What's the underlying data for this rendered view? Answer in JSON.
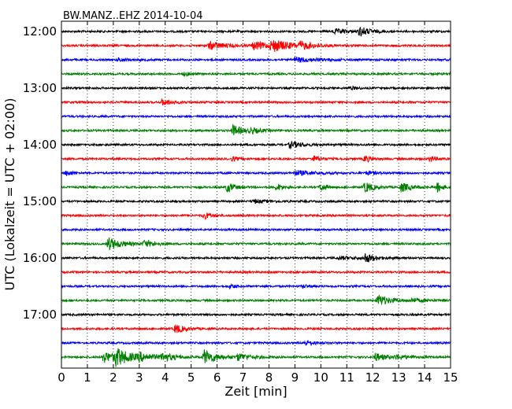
{
  "chart_data": {
    "type": "line",
    "title": "BW.MANZ..EHZ 2014-10-04",
    "xlabel": "Zeit  [min]",
    "ylabel": "UTC (Lokalzeit = UTC + 02:00)",
    "xlim": [
      0,
      15
    ],
    "xticks": [
      "0",
      "1",
      "2",
      "3",
      "4",
      "5",
      "6",
      "7",
      "8",
      "9",
      "10",
      "11",
      "12",
      "13",
      "14",
      "15"
    ],
    "yticks": [
      "12:00",
      "13:00",
      "14:00",
      "15:00",
      "16:00",
      "17:00"
    ],
    "trace_interval_min": 15,
    "grid": "vertical dotted at every minute",
    "colors": [
      "#000000",
      "#ff0000",
      "#0000ff",
      "#008000"
    ],
    "series": [
      {
        "start": "12:00",
        "events": [
          {
            "t": 10.5,
            "a": 3,
            "w": 0.5
          },
          {
            "t": 11.5,
            "a": 6,
            "w": 0.35
          }
        ]
      },
      {
        "start": "12:15",
        "events": [
          {
            "t": 5.7,
            "a": 5,
            "w": 0.6
          },
          {
            "t": 7.4,
            "a": 5,
            "w": 0.6
          },
          {
            "t": 8.1,
            "a": 7,
            "w": 0.7
          },
          {
            "t": 9.2,
            "a": 4,
            "w": 0.5
          }
        ]
      },
      {
        "start": "12:30",
        "events": [
          {
            "t": 2.2,
            "a": 2,
            "w": 0.5
          },
          {
            "t": 9.0,
            "a": 3,
            "w": 0.9
          }
        ]
      },
      {
        "start": "12:45",
        "events": [
          {
            "t": 4.7,
            "a": 2,
            "w": 0.3
          },
          {
            "t": 15.0,
            "a": 3,
            "w": 0.2
          }
        ]
      },
      {
        "start": "13:00",
        "events": [
          {
            "t": 11.1,
            "a": 2,
            "w": 0.3
          }
        ]
      },
      {
        "start": "13:15",
        "events": [
          {
            "t": 3.9,
            "a": 4,
            "w": 0.35
          }
        ]
      },
      {
        "start": "13:30",
        "events": []
      },
      {
        "start": "13:45",
        "events": [
          {
            "t": 6.6,
            "a": 7,
            "w": 0.35
          },
          {
            "t": 7.3,
            "a": 3,
            "w": 0.4
          }
        ]
      },
      {
        "start": "14:00",
        "events": [
          {
            "t": 8.8,
            "a": 4,
            "w": 0.5
          }
        ]
      },
      {
        "start": "14:15",
        "events": [
          {
            "t": 6.6,
            "a": 3,
            "w": 0.2
          },
          {
            "t": 9.7,
            "a": 4,
            "w": 0.3
          },
          {
            "t": 11.7,
            "a": 5,
            "w": 0.2
          },
          {
            "t": 14.2,
            "a": 4,
            "w": 0.2
          }
        ]
      },
      {
        "start": "14:30",
        "events": [
          {
            "t": 0.2,
            "a": 4,
            "w": 0.2
          },
          {
            "t": 9.0,
            "a": 3,
            "w": 0.8
          },
          {
            "t": 11.8,
            "a": 2,
            "w": 0.4
          }
        ]
      },
      {
        "start": "14:45",
        "events": [
          {
            "t": 6.4,
            "a": 7,
            "w": 0.25
          },
          {
            "t": 8.3,
            "a": 5,
            "w": 0.2
          },
          {
            "t": 10.0,
            "a": 5,
            "w": 0.2
          },
          {
            "t": 11.7,
            "a": 7,
            "w": 0.3
          },
          {
            "t": 13.1,
            "a": 6,
            "w": 0.35
          },
          {
            "t": 14.5,
            "a": 6,
            "w": 0.2
          }
        ]
      },
      {
        "start": "15:00",
        "events": [
          {
            "t": 7.4,
            "a": 2,
            "w": 0.5
          }
        ]
      },
      {
        "start": "15:15",
        "events": [
          {
            "t": 5.5,
            "a": 4,
            "w": 0.3
          }
        ]
      },
      {
        "start": "15:30",
        "events": []
      },
      {
        "start": "15:45",
        "events": [
          {
            "t": 1.8,
            "a": 8,
            "w": 0.5
          },
          {
            "t": 3.2,
            "a": 4,
            "w": 0.4
          }
        ]
      },
      {
        "start": "16:00",
        "events": [
          {
            "t": 10.7,
            "a": 2,
            "w": 0.6
          },
          {
            "t": 11.7,
            "a": 6,
            "w": 0.35
          }
        ]
      },
      {
        "start": "16:15",
        "events": []
      },
      {
        "start": "16:30",
        "events": [
          {
            "t": 6.5,
            "a": 3,
            "w": 0.2
          },
          {
            "t": 9.3,
            "a": 2,
            "w": 0.3
          }
        ]
      },
      {
        "start": "16:45",
        "events": [
          {
            "t": 12.2,
            "a": 7,
            "w": 0.45
          },
          {
            "t": 13.5,
            "a": 2,
            "w": 0.6
          }
        ]
      },
      {
        "start": "17:00",
        "events": []
      },
      {
        "start": "17:15",
        "events": [
          {
            "t": 4.4,
            "a": 6,
            "w": 0.3
          }
        ]
      },
      {
        "start": "17:30",
        "events": [
          {
            "t": 9.4,
            "a": 3,
            "w": 0.4
          }
        ]
      },
      {
        "start": "17:45",
        "events": [
          {
            "t": 1.6,
            "a": 7,
            "w": 0.6
          },
          {
            "t": 2.1,
            "a": 10,
            "w": 0.5
          },
          {
            "t": 3.0,
            "a": 4,
            "w": 0.6
          },
          {
            "t": 3.9,
            "a": 5,
            "w": 0.4
          },
          {
            "t": 5.5,
            "a": 9,
            "w": 0.5
          },
          {
            "t": 6.8,
            "a": 4,
            "w": 0.5
          },
          {
            "t": 12.1,
            "a": 5,
            "w": 0.4
          },
          {
            "t": 12.9,
            "a": 3,
            "w": 0.4
          }
        ]
      }
    ]
  }
}
